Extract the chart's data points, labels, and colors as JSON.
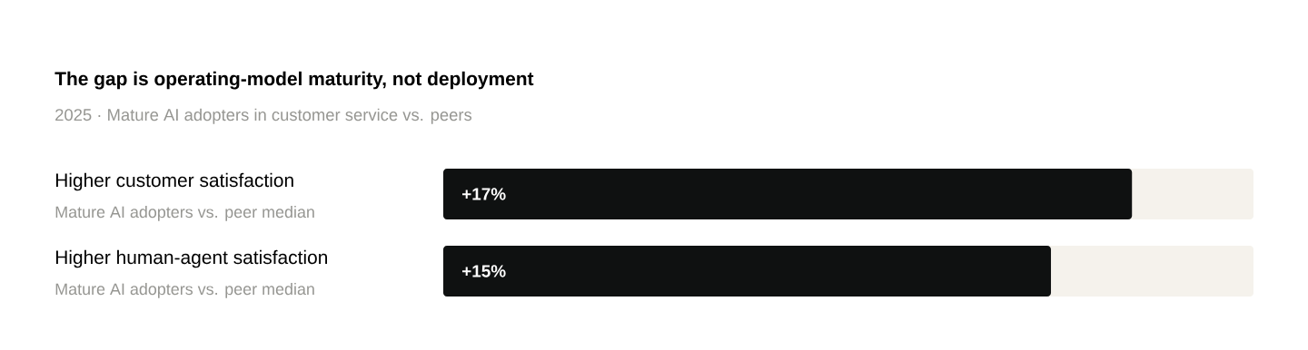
{
  "chart_data": {
    "type": "bar",
    "orientation": "horizontal",
    "title": "The gap is operating-model maturity, not deployment",
    "subtitle": "2025 · Mature AI adopters in customer service vs. peers",
    "categories": [
      "Higher customer satisfaction",
      "Higher human-agent satisfaction"
    ],
    "annotations": [
      "Mature AI adopters vs. peer median",
      "Mature AI adopters vs. peer median"
    ],
    "values": [
      17,
      15
    ],
    "color": "#0f1111",
    "value_labels": [
      "+17%",
      "+15%"
    ],
    "xlim": [
      0,
      20
    ],
    "tick_labels": "y"
  }
}
